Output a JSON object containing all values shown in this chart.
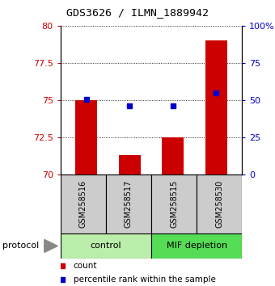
{
  "title": "GDS3626 / ILMN_1889942",
  "samples": [
    "GSM258516",
    "GSM258517",
    "GSM258515",
    "GSM258530"
  ],
  "groups": [
    {
      "label": "control",
      "indices": [
        0,
        1
      ]
    },
    {
      "label": "MIF depletion",
      "indices": [
        2,
        3
      ]
    }
  ],
  "red_bars": [
    75.0,
    71.3,
    72.5,
    79.0
  ],
  "blue_dots": [
    50.5,
    46.0,
    46.0,
    55.0
  ],
  "ylim_left": [
    70,
    80
  ],
  "ylim_right": [
    0,
    100
  ],
  "yticks_left": [
    70,
    72.5,
    75,
    77.5,
    80
  ],
  "yticks_right": [
    0,
    25,
    50,
    75,
    100
  ],
  "ytick_labels_left": [
    "70",
    "72.5",
    "75",
    "77.5",
    "80"
  ],
  "ytick_labels_right": [
    "0",
    "25",
    "50",
    "75",
    "100%"
  ],
  "bar_color": "#cc0000",
  "dot_color": "#0000cc",
  "bar_width": 0.5,
  "group_box_colors": [
    "#bbeeaa",
    "#55dd55"
  ],
  "sample_box_color": "#cccccc",
  "legend_count_label": "count",
  "legend_pct_label": "percentile rank within the sample",
  "protocol_label": "protocol"
}
